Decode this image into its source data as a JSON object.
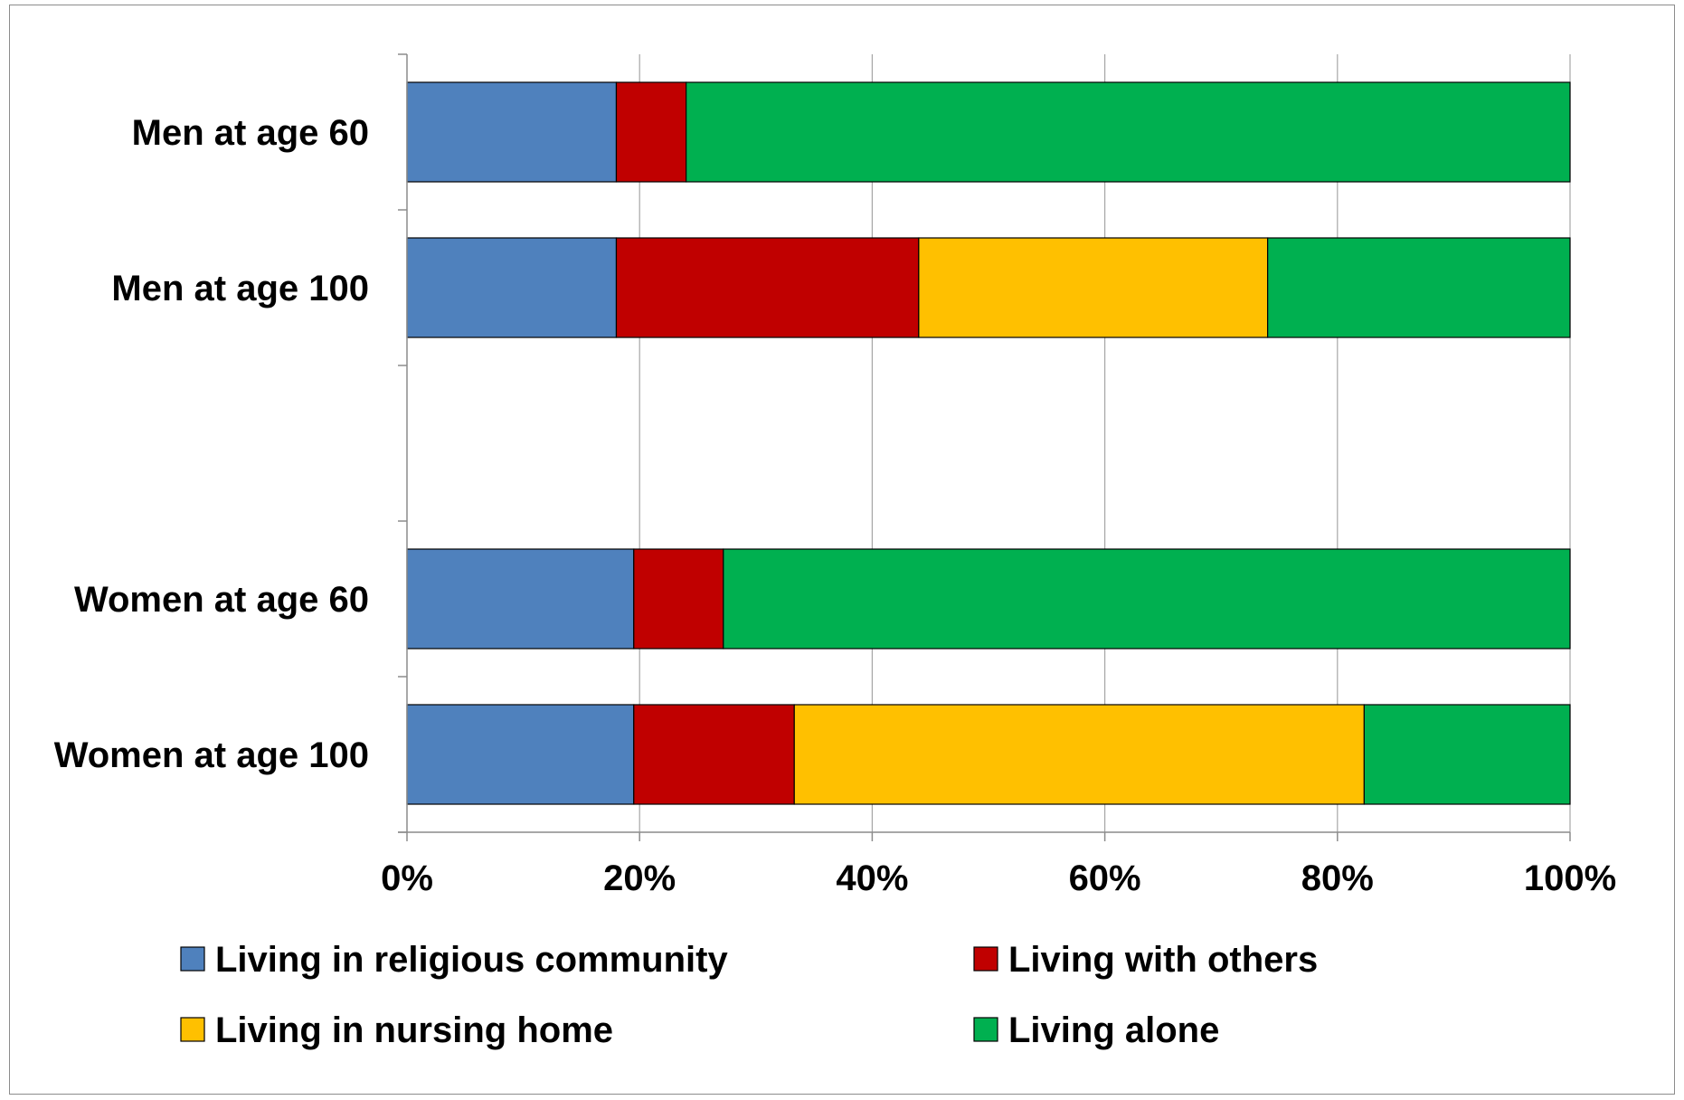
{
  "chart_data": {
    "type": "bar",
    "orientation": "horizontal",
    "stacked": "percent",
    "categories": [
      "Men at age 60",
      "Men at age 100",
      "",
      "Women at age 60",
      "Women at age 100"
    ],
    "series": [
      {
        "name": "Living in religious community",
        "color": "#4f81bd",
        "values": [
          18,
          18,
          null,
          19.5,
          19.5
        ]
      },
      {
        "name": "Living with others",
        "color": "#c00000",
        "values": [
          6,
          26,
          null,
          7.7,
          13.8
        ]
      },
      {
        "name": "Living in nursing home",
        "color": "#ffc000",
        "values": [
          0,
          30,
          null,
          0,
          49
        ]
      },
      {
        "name": "Living alone",
        "color": "#00b050",
        "values": [
          76,
          26,
          null,
          72.8,
          17.7
        ]
      }
    ],
    "xlim": [
      0,
      100
    ],
    "x_ticks": [
      "0%",
      "20%",
      "40%",
      "60%",
      "80%",
      "100%"
    ],
    "grid": "vertical",
    "legend": "bottom",
    "title": "",
    "xlabel": "",
    "ylabel": ""
  }
}
